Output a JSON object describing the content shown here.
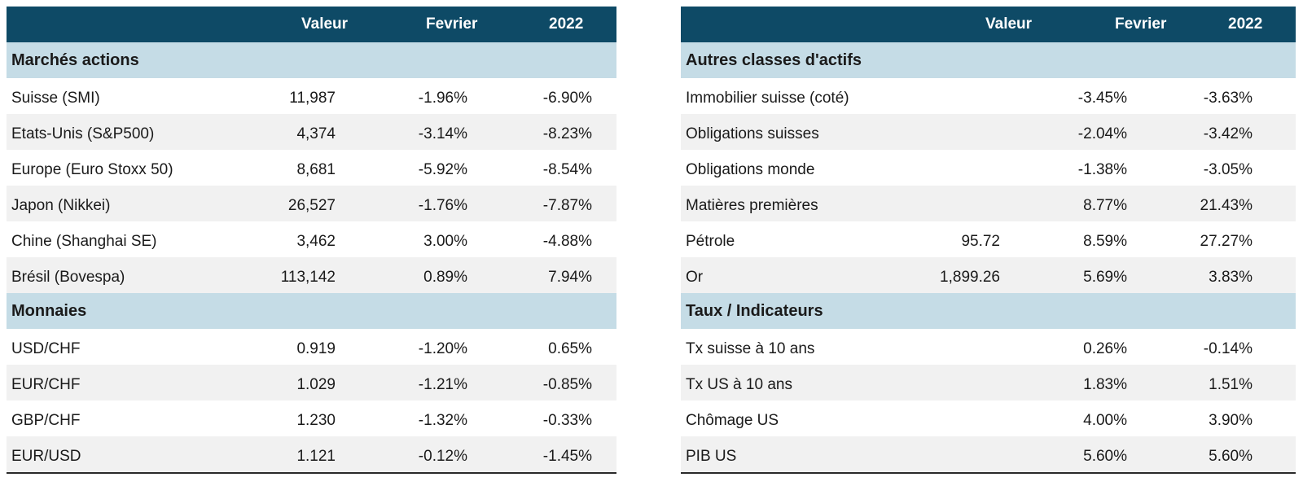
{
  "left_table": {
    "headers": [
      "Valeur",
      "Fevrier",
      "2022"
    ],
    "groups": [
      {
        "title": "Marchés actions",
        "rows": [
          {
            "label": "Suisse (SMI)",
            "valeur": "11,987",
            "fevrier": "-1.96%",
            "annee": "-6.90%"
          },
          {
            "label": "Etats-Unis (S&P500)",
            "valeur": "4,374",
            "fevrier": "-3.14%",
            "annee": "-8.23%"
          },
          {
            "label": "Europe (Euro Stoxx 50)",
            "valeur": "8,681",
            "fevrier": "-5.92%",
            "annee": "-8.54%"
          },
          {
            "label": "Japon (Nikkei)",
            "valeur": "26,527",
            "fevrier": "-1.76%",
            "annee": "-7.87%"
          },
          {
            "label": "Chine (Shanghai SE)",
            "valeur": "3,462",
            "fevrier": "3.00%",
            "annee": "-4.88%"
          },
          {
            "label": "Brésil (Bovespa)",
            "valeur": "113,142",
            "fevrier": "0.89%",
            "annee": "7.94%"
          }
        ]
      },
      {
        "title": "Monnaies",
        "rows": [
          {
            "label": "USD/CHF",
            "valeur": "0.919",
            "fevrier": "-1.20%",
            "annee": "0.65%"
          },
          {
            "label": "EUR/CHF",
            "valeur": "1.029",
            "fevrier": "-1.21%",
            "annee": "-0.85%"
          },
          {
            "label": "GBP/CHF",
            "valeur": "1.230",
            "fevrier": "-1.32%",
            "annee": "-0.33%"
          },
          {
            "label": "EUR/USD",
            "valeur": "1.121",
            "fevrier": "-0.12%",
            "annee": "-1.45%"
          }
        ]
      }
    ]
  },
  "right_table": {
    "headers": [
      "Valeur",
      "Fevrier",
      "2022"
    ],
    "groups": [
      {
        "title": "Autres classes d'actifs",
        "rows": [
          {
            "label": "Immobilier suisse (coté)",
            "valeur": "",
            "fevrier": "-3.45%",
            "annee": "-3.63%"
          },
          {
            "label": "Obligations suisses",
            "valeur": "",
            "fevrier": "-2.04%",
            "annee": "-3.42%"
          },
          {
            "label": "Obligations monde",
            "valeur": "",
            "fevrier": "-1.38%",
            "annee": "-3.05%"
          },
          {
            "label": "Matières premières",
            "valeur": "",
            "fevrier": "8.77%",
            "annee": "21.43%"
          },
          {
            "label": "Pétrole",
            "valeur": "95.72",
            "fevrier": "8.59%",
            "annee": "27.27%"
          },
          {
            "label": "Or",
            "valeur": "1,899.26",
            "fevrier": "5.69%",
            "annee": "3.83%"
          }
        ]
      },
      {
        "title": "Taux / Indicateurs",
        "rows": [
          {
            "label": "Tx suisse à 10 ans",
            "valeur": "",
            "fevrier": "0.26%",
            "annee": "-0.14%"
          },
          {
            "label": "Tx US à 10 ans",
            "valeur": "",
            "fevrier": "1.83%",
            "annee": "1.51%"
          },
          {
            "label": "Chômage US",
            "valeur": "",
            "fevrier": "4.00%",
            "annee": "3.90%"
          },
          {
            "label": "PIB US",
            "valeur": "",
            "fevrier": "5.60%",
            "annee": "5.60%"
          }
        ]
      }
    ]
  },
  "colors": {
    "header_bg": "#0e4a66",
    "section_bg": "#c5dce6",
    "alt_row_bg": "#f1f1f1"
  }
}
